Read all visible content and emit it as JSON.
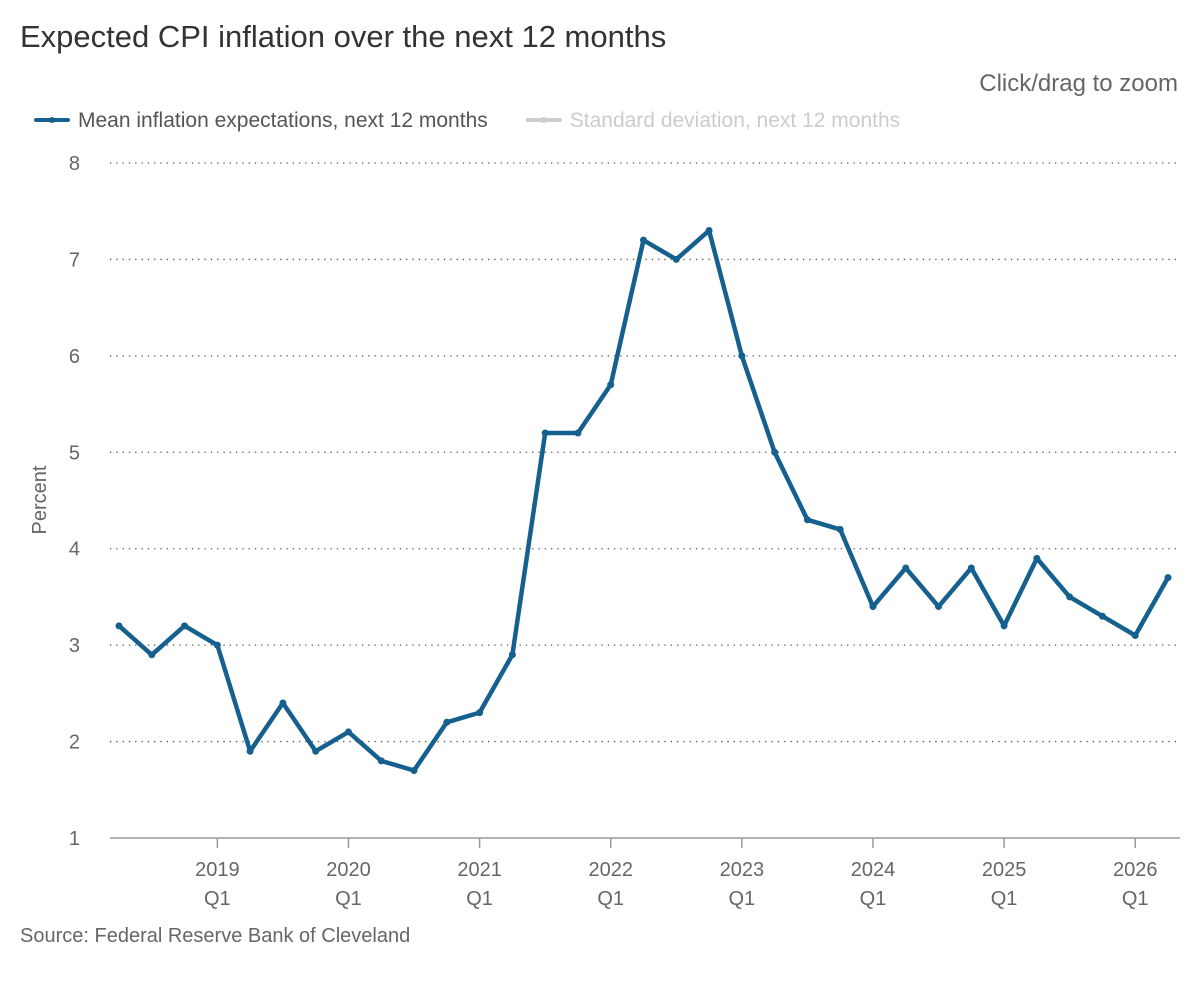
{
  "chart_data": {
    "type": "line",
    "title": "Expected CPI inflation over the next 12 months",
    "zoom_hint": "Click/drag to zoom",
    "y_label": "Percent",
    "source": "Source: Federal Reserve Bank of Cleveland",
    "categories": [
      null,
      null,
      null,
      "2019 Q1",
      null,
      null,
      null,
      "2020 Q1",
      null,
      null,
      null,
      "2021 Q1",
      null,
      null,
      null,
      "2022 Q1",
      null,
      null,
      null,
      "2023 Q1",
      null,
      null,
      null,
      "2024 Q1",
      null,
      null,
      null,
      "2025 Q1",
      null,
      null,
      null,
      "2026 Q1",
      null
    ],
    "series": [
      {
        "name": "Mean inflation expectations, next 12 months",
        "color": "#15608f",
        "visible": true,
        "values": [
          3.2,
          2.9,
          3.2,
          3.0,
          1.9,
          2.4,
          1.9,
          2.1,
          1.8,
          1.7,
          2.2,
          2.3,
          2.9,
          5.2,
          5.2,
          5.7,
          7.2,
          7.0,
          7.3,
          6.0,
          5.0,
          4.3,
          4.2,
          3.4,
          3.8,
          3.4,
          3.8,
          3.2,
          3.9,
          3.5,
          3.3,
          3.1,
          3.7
        ]
      },
      {
        "name": "Standard deviation, next 12 months",
        "color": "#cccccc",
        "visible": false
      }
    ],
    "ylim": [
      1,
      8
    ],
    "yticks": [
      1,
      2,
      3,
      4,
      5,
      6,
      7,
      8
    ],
    "grid": true
  }
}
